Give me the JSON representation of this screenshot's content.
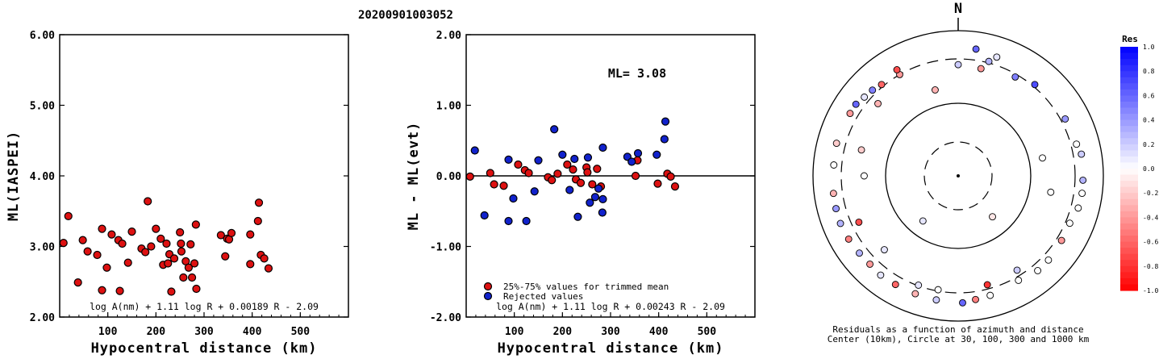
{
  "title": "20200901003052",
  "chart_data": [
    {
      "type": "scatter",
      "name": "ml-vs-distance",
      "xlabel": "Hypocentral distance (km)",
      "ylabel": "ML(IASPEI)",
      "xlim": [
        0,
        600
      ],
      "ylim": [
        2.0,
        6.0
      ],
      "x_ticks": [
        "100",
        "200",
        "300",
        "400",
        "500"
      ],
      "y_ticks": [
        "2.00",
        "3.00",
        "4.00",
        "5.00",
        "6.00"
      ],
      "formula": "log A(nm) + 1.11 log R + 0.00189 R - 2.09",
      "marker_color": "#dd1111",
      "points": [
        [
          8,
          3.05
        ],
        [
          18,
          3.43
        ],
        [
          38,
          2.49
        ],
        [
          48,
          3.09
        ],
        [
          58,
          2.93
        ],
        [
          78,
          2.88
        ],
        [
          88,
          3.25
        ],
        [
          88,
          2.38
        ],
        [
          98,
          2.7
        ],
        [
          108,
          3.17
        ],
        [
          122,
          3.09
        ],
        [
          125,
          2.37
        ],
        [
          130,
          3.04
        ],
        [
          142,
          2.77
        ],
        [
          150,
          3.21
        ],
        [
          170,
          2.97
        ],
        [
          178,
          2.92
        ],
        [
          183,
          3.64
        ],
        [
          190,
          3.0
        ],
        [
          200,
          3.25
        ],
        [
          210,
          3.11
        ],
        [
          215,
          2.74
        ],
        [
          222,
          3.04
        ],
        [
          225,
          2.76
        ],
        [
          228,
          2.89
        ],
        [
          232,
          2.36
        ],
        [
          238,
          2.83
        ],
        [
          250,
          3.2
        ],
        [
          252,
          3.04
        ],
        [
          253,
          2.93
        ],
        [
          257,
          2.56
        ],
        [
          262,
          2.79
        ],
        [
          268,
          2.7
        ],
        [
          272,
          3.03
        ],
        [
          275,
          2.56
        ],
        [
          280,
          2.76
        ],
        [
          283,
          3.31
        ],
        [
          284,
          2.4
        ],
        [
          335,
          3.16
        ],
        [
          344,
          2.86
        ],
        [
          348,
          3.11
        ],
        [
          352,
          3.1
        ],
        [
          357,
          3.19
        ],
        [
          396,
          3.17
        ],
        [
          396,
          2.75
        ],
        [
          412,
          3.36
        ],
        [
          414,
          3.62
        ],
        [
          418,
          2.88
        ],
        [
          425,
          2.83
        ],
        [
          434,
          2.69
        ]
      ]
    },
    {
      "type": "scatter",
      "name": "ml-residual-vs-distance",
      "xlabel": "Hypocentral distance (km)",
      "ylabel": "ML - ML(evt)",
      "xlim": [
        0,
        600
      ],
      "ylim": [
        -2.0,
        2.0
      ],
      "x_ticks": [
        "100",
        "200",
        "300",
        "400",
        "500"
      ],
      "y_ticks": [
        "-2.00",
        "-1.00",
        "0.00",
        "1.00",
        "2.00"
      ],
      "annotation": "ML= 3.08",
      "reference_line": 0,
      "formula": "log A(nm) + 1.11 log R + 0.00243 R - 2.09",
      "series": [
        {
          "name": "25%-75% values for trimmed mean",
          "color": "#dd1111",
          "points": [
            [
              8,
              -0.01
            ],
            [
              50,
              0.04
            ],
            [
              58,
              -0.12
            ],
            [
              78,
              -0.14
            ],
            [
              108,
              0.16
            ],
            [
              122,
              0.08
            ],
            [
              130,
              0.04
            ],
            [
              170,
              -0.02
            ],
            [
              178,
              -0.06
            ],
            [
              190,
              0.03
            ],
            [
              210,
              0.16
            ],
            [
              222,
              0.09
            ],
            [
              228,
              -0.05
            ],
            [
              238,
              -0.1
            ],
            [
              250,
              0.12
            ],
            [
              252,
              0.05
            ],
            [
              262,
              -0.12
            ],
            [
              272,
              0.1
            ],
            [
              280,
              -0.15
            ],
            [
              352,
              0.0
            ],
            [
              356,
              0.22
            ],
            [
              398,
              -0.11
            ],
            [
              418,
              0.03
            ],
            [
              425,
              -0.01
            ],
            [
              434,
              -0.15
            ]
          ]
        },
        {
          "name": "Rejected values",
          "color": "#1122cc",
          "points": [
            [
              18,
              0.36
            ],
            [
              38,
              -0.56
            ],
            [
              88,
              0.23
            ],
            [
              88,
              -0.64
            ],
            [
              98,
              -0.32
            ],
            [
              125,
              -0.64
            ],
            [
              142,
              -0.22
            ],
            [
              150,
              0.22
            ],
            [
              183,
              0.66
            ],
            [
              200,
              0.3
            ],
            [
              215,
              -0.2
            ],
            [
              225,
              0.24
            ],
            [
              232,
              -0.58
            ],
            [
              253,
              0.26
            ],
            [
              257,
              -0.38
            ],
            [
              268,
              -0.3
            ],
            [
              275,
              -0.18
            ],
            [
              283,
              -0.52
            ],
            [
              284,
              0.4
            ],
            [
              335,
              0.27
            ],
            [
              344,
              0.2
            ],
            [
              357,
              0.32
            ],
            [
              396,
              0.3
            ],
            [
              412,
              0.52
            ],
            [
              414,
              0.77
            ],
            [
              284,
              -0.33
            ]
          ]
        }
      ]
    },
    {
      "type": "polar-scatter",
      "name": "residual-azimuth-map",
      "north_label": "N",
      "caption_line1": "Residuals as a function of azimuth and distance",
      "caption_line2": "Center (10km), Circle at 30, 100, 300 and 1000 km",
      "circles_km": [
        30,
        100,
        300,
        1000
      ],
      "colorbar_title": "Res",
      "colorbar_ticks": [
        "1.0",
        "0.8",
        "0.6",
        "0.4",
        "0.2",
        "0.0",
        "-0.2",
        "-0.4",
        "-0.6",
        "-0.8",
        "-1.0"
      ],
      "colorbar_range": [
        -1.0,
        1.0
      ],
      "points_az_dist_res": [
        [
          140,
          55,
          -0.1
        ],
        [
          218,
          62,
          0.1
        ],
        [
          270,
          170,
          0.0
        ],
        [
          285,
          198,
          -0.2
        ],
        [
          345,
          150,
          -0.3
        ],
        [
          12,
          250,
          -0.4
        ],
        [
          312,
          240,
          -0.3
        ],
        [
          245,
          250,
          -0.7
        ],
        [
          0,
          260,
          0.2
        ],
        [
          78,
          140,
          0.0
        ],
        [
          100,
          170,
          0.0
        ],
        [
          148,
          260,
          0.2
        ],
        [
          165,
          270,
          -0.8
        ],
        [
          190,
          290,
          0.0
        ],
        [
          200,
          295,
          0.1
        ],
        [
          225,
          220,
          0.1
        ],
        [
          30,
          280,
          0.5
        ],
        [
          15,
          320,
          0.3
        ],
        [
          40,
          330,
          0.7
        ],
        [
          330,
          300,
          -0.4
        ],
        [
          320,
          330,
          -0.6
        ],
        [
          310,
          380,
          0.1
        ],
        [
          305,
          420,
          0.6
        ],
        [
          315,
          360,
          0.5
        ],
        [
          300,
          420,
          -0.4
        ],
        [
          285,
          440,
          -0.2
        ],
        [
          275,
          420,
          0.0
        ],
        [
          262,
          440,
          -0.3
        ],
        [
          255,
          450,
          0.4
        ],
        [
          248,
          460,
          0.3
        ],
        [
          240,
          450,
          -0.5
        ],
        [
          232,
          430,
          0.3
        ],
        [
          225,
          420,
          -0.4
        ],
        [
          218,
          440,
          0.1
        ],
        [
          210,
          430,
          -0.6
        ],
        [
          200,
          430,
          -0.3
        ],
        [
          190,
          440,
          0.2
        ],
        [
          178,
          460,
          0.6
        ],
        [
          172,
          420,
          -0.5
        ],
        [
          165,
          400,
          0.0
        ],
        [
          150,
          350,
          0.0
        ],
        [
          140,
          400,
          0.0
        ],
        [
          133,
          395,
          0.0
        ],
        [
          122,
          370,
          -0.4
        ],
        [
          113,
          360,
          0.0
        ],
        [
          105,
          410,
          0.0
        ],
        [
          98,
          425,
          0.0
        ],
        [
          92,
          420,
          0.3
        ],
        [
          80,
          425,
          0.2
        ],
        [
          75,
          380,
          0.0
        ],
        [
          62,
          360,
          0.4
        ],
        [
          18,
          420,
          0.1
        ],
        [
          8,
          480,
          0.6
        ],
        [
          330,
          380,
          -0.7
        ]
      ]
    }
  ]
}
